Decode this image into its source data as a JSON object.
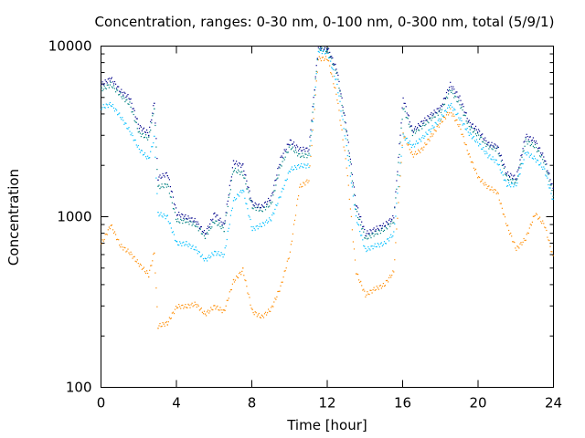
{
  "chart_data": {
    "type": "scatter",
    "title": "Concentration, ranges: 0-30 nm, 0-100 nm, 0-300 nm, total (5/9/1)",
    "xlabel": "Time [hour]",
    "ylabel": "Concentration",
    "xlim": [
      0,
      24
    ],
    "ylim": [
      100,
      10000
    ],
    "yscale": "log",
    "grid": false,
    "x_ticks": [
      0,
      4,
      8,
      12,
      16,
      20,
      24
    ],
    "x_tick_labels": [
      "0",
      "4",
      "8",
      "12",
      "16",
      "20",
      "24"
    ],
    "y_major_ticks": [
      100,
      1000,
      10000
    ],
    "y_tick_labels": [
      "100",
      "1000",
      "10000"
    ],
    "y_minor_ticks": [
      200,
      300,
      400,
      500,
      600,
      700,
      800,
      900,
      2000,
      3000,
      4000,
      5000,
      6000,
      7000,
      8000,
      9000
    ],
    "series": [
      {
        "color": "#ff8c00",
        "x": [
          0,
          0.5,
          1,
          1.5,
          2,
          2.5,
          2.8,
          3,
          3.5,
          4,
          4.5,
          5,
          5.5,
          6,
          6.5,
          7,
          7.5,
          8,
          8.5,
          9,
          9.5,
          10,
          10.5,
          11,
          11.5,
          12,
          12.5,
          13,
          13.5,
          14,
          14.5,
          15,
          15.5,
          16,
          16.5,
          17,
          17.5,
          18,
          18.5,
          19,
          19.5,
          20,
          20.5,
          21,
          21.5,
          22,
          22.5,
          23,
          23.5,
          24
        ],
        "values": [
          700,
          900,
          680,
          620,
          530,
          460,
          620,
          230,
          240,
          300,
          300,
          310,
          270,
          300,
          280,
          420,
          490,
          280,
          260,
          290,
          390,
          620,
          1500,
          1650,
          8500,
          8500,
          5000,
          2000,
          480,
          350,
          380,
          400,
          480,
          3100,
          2300,
          2500,
          3000,
          3600,
          4200,
          3400,
          2300,
          1700,
          1500,
          1400,
          900,
          650,
          750,
          1050,
          900,
          560
        ]
      },
      {
        "color": "#00bfff",
        "x": [
          0,
          0.5,
          1,
          1.5,
          2,
          2.5,
          2.8,
          3,
          3.5,
          4,
          4.5,
          5,
          5.5,
          6,
          6.5,
          7,
          7.5,
          8,
          8.5,
          9,
          9.5,
          10,
          10.5,
          11,
          11.5,
          12,
          12.5,
          13,
          13.5,
          14,
          14.5,
          15,
          15.5,
          16,
          16.5,
          17,
          17.5,
          18,
          18.5,
          19,
          19.5,
          20,
          20.5,
          21,
          21.5,
          22,
          22.5,
          23,
          23.5,
          24
        ],
        "values": [
          4400,
          4600,
          3900,
          3200,
          2500,
          2200,
          2900,
          1050,
          1000,
          700,
          700,
          650,
          560,
          620,
          600,
          1250,
          1450,
          850,
          900,
          980,
          1350,
          1900,
          2000,
          2000,
          9500,
          9200,
          6000,
          2600,
          1000,
          640,
          680,
          700,
          800,
          3000,
          2600,
          2900,
          3300,
          3800,
          4600,
          3800,
          3100,
          2700,
          2300,
          2100,
          1550,
          1550,
          2400,
          2200,
          1900,
          1200
        ]
      },
      {
        "color": "#008080",
        "x": [
          0,
          0.5,
          1,
          1.5,
          2,
          2.5,
          2.8,
          3,
          3.5,
          4,
          4.5,
          5,
          5.5,
          6,
          6.5,
          7,
          7.5,
          8,
          8.5,
          9,
          9.5,
          10,
          10.5,
          11,
          11.5,
          12,
          12.5,
          13,
          13.5,
          14,
          14.5,
          15,
          15.5,
          16,
          16.5,
          17,
          17.5,
          18,
          18.5,
          19,
          19.5,
          20,
          20.5,
          21,
          21.5,
          22,
          22.5,
          23,
          23.5,
          24
        ],
        "values": [
          5600,
          6000,
          5200,
          4600,
          3100,
          2900,
          4400,
          1500,
          1550,
          950,
          950,
          900,
          770,
          950,
          850,
          1900,
          1800,
          1150,
          1100,
          1200,
          2000,
          2600,
          2300,
          2300,
          9800,
          9500,
          6900,
          3100,
          1100,
          750,
          800,
          850,
          950,
          4400,
          3100,
          3400,
          3800,
          4200,
          5600,
          4600,
          3400,
          3000,
          2600,
          2500,
          1700,
          1600,
          2800,
          2600,
          2100,
          1300
        ]
      },
      {
        "color": "#00008b",
        "x": [
          0,
          0.5,
          1,
          1.5,
          2,
          2.5,
          2.8,
          3,
          3.5,
          4,
          4.5,
          5,
          5.5,
          6,
          6.5,
          7,
          7.5,
          8,
          8.5,
          9,
          9.5,
          10,
          10.5,
          11,
          11.5,
          12,
          12.5,
          13,
          13.5,
          14,
          14.5,
          15,
          15.5,
          16,
          16.5,
          17,
          17.5,
          18,
          18.5,
          19,
          19.5,
          20,
          20.5,
          21,
          21.5,
          22,
          22.5,
          23,
          23.5,
          24
        ],
        "values": [
          6000,
          6500,
          5500,
          5000,
          3400,
          3100,
          4700,
          1700,
          1800,
          1050,
          1000,
          950,
          800,
          1050,
          900,
          2100,
          2000,
          1200,
          1150,
          1300,
          2200,
          2800,
          2500,
          2500,
          10000,
          9800,
          7200,
          3300,
          1200,
          800,
          850,
          900,
          1000,
          5000,
          3200,
          3600,
          4000,
          4400,
          6000,
          5000,
          3600,
          3200,
          2700,
          2600,
          1800,
          1700,
          3000,
          2800,
          2200,
          1400
        ]
      }
    ]
  }
}
